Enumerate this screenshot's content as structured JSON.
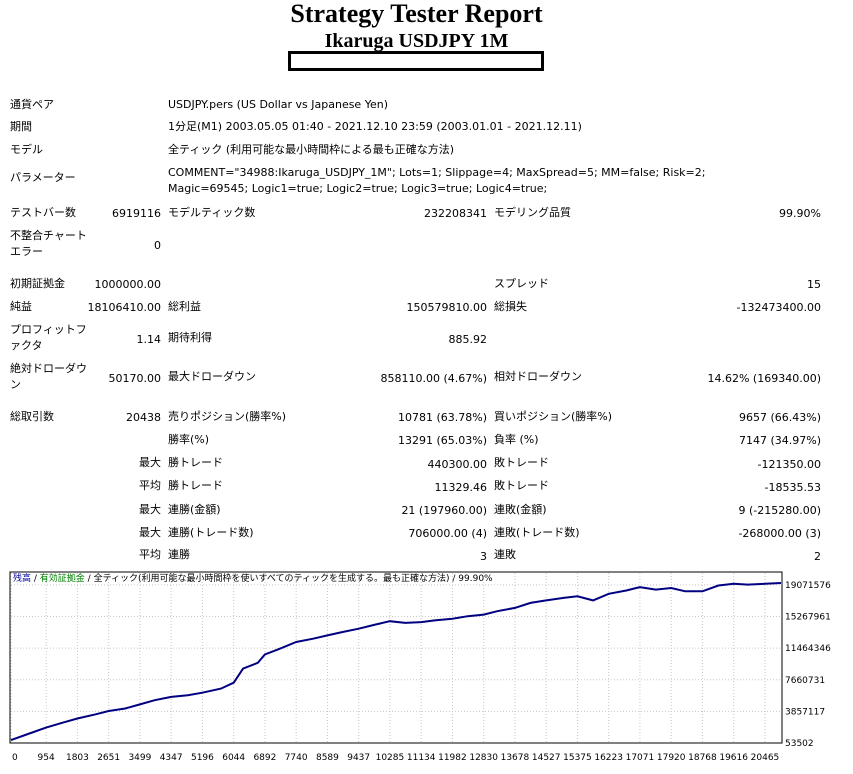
{
  "header": {
    "title": "Strategy Tester Report",
    "subtitle": "Ikaruga  USDJPY  1M"
  },
  "info": [
    {
      "label": "通貨ペア",
      "value": "USDJPY.pers (US Dollar vs Japanese Yen)"
    },
    {
      "label": "期間",
      "value": "1分足(M1) 2003.05.05 01:40 - 2021.12.10 23:59 (2003.01.01 - 2021.12.11)"
    },
    {
      "label": "モデル",
      "value": "全ティック (利用可能な最小時間枠による最も正確な方法)"
    },
    {
      "label": "パラメーター",
      "value": "COMMENT=\"34988:Ikaruga_USDJPY_1M\"; Lots=1; Slippage=4; MaxSpread=5; MM=false; Risk=2; Magic=69545; Logic1=true; Logic2=true; Logic3=true; Logic4=true;"
    }
  ],
  "stats": {
    "test_bars_label": "テストバー数",
    "test_bars": "6919116",
    "model_ticks_label": "モデルティック数",
    "model_ticks": "232208341",
    "model_quality_label": "モデリング品質",
    "model_quality": "99.90%",
    "mismatch_label": "不整合チャートエラー",
    "mismatch": "0",
    "initial_deposit_label": "初期証拠金",
    "initial_deposit": "1000000.00",
    "spread_label": "スプレッド",
    "spread": "15",
    "net_profit_label": "純益",
    "net_profit": "18106410.00",
    "gross_profit_label": "総利益",
    "gross_profit": "150579810.00",
    "gross_loss_label": "総損失",
    "gross_loss": "-132473400.00",
    "profit_factor_label": "プロフィットファクタ",
    "profit_factor": "1.14",
    "expected_payoff_label": "期待利得",
    "expected_payoff": "885.92",
    "abs_dd_label": "絶対ドローダウン",
    "abs_dd": "50170.00",
    "max_dd_label": "最大ドローダウン",
    "max_dd": "858110.00 (4.67%)",
    "rel_dd_label": "相対ドローダウン",
    "rel_dd": "14.62% (169340.00)",
    "total_trades_label": "総取引数",
    "total_trades": "20438",
    "short_label": "売りポジション(勝率%)",
    "short": "10781 (63.78%)",
    "long_label": "買いポジション(勝率%)",
    "long": "9657 (66.43%)",
    "win_rate_label": "勝率(%)",
    "win_rate": "13291 (65.03%)",
    "loss_rate_label": "負率 (%)",
    "loss_rate": "7147 (34.97%)",
    "max_label": "最大",
    "avg_label": "平均",
    "win_trade_label": "勝トレード",
    "lose_trade_label": "敗トレード",
    "largest_win": "440300.00",
    "largest_loss": "-121350.00",
    "avg_win": "11329.46",
    "avg_loss": "-18535.53",
    "consec_win_money_label": "連勝(金額)",
    "consec_win_money": "21 (197960.00)",
    "consec_loss_money_label": "連敗(金額)",
    "consec_loss_money": "9 (-215280.00)",
    "consec_win_count_label": "連勝(トレード数)",
    "consec_win_count": "706000.00 (4)",
    "consec_loss_count_label": "連敗(トレード数)",
    "consec_loss_count": "-268000.00 (3)",
    "consec_win_label": "連勝",
    "avg_consec_win": "3",
    "consec_loss_label": "連敗",
    "avg_consec_loss": "2"
  },
  "chart_data": {
    "type": "line",
    "legend": {
      "balance": "残高",
      "sep1": " / ",
      "equity": "有効証拠金",
      "sep2": " / ",
      "model": "全ティック(利用可能な最小時間枠を使いすべてのティックを生成する。最も正確な方法)",
      "sep3": " / ",
      "quality": "99.90%"
    },
    "ylim": [
      53502,
      20500000
    ],
    "y_ticks": [
      53502,
      3857117,
      7660731,
      11464346,
      15267961,
      19071576
    ],
    "x_ticks": [
      0,
      954,
      1803,
      2651,
      3499,
      4347,
      5196,
      6044,
      6892,
      7740,
      8589,
      9437,
      10285,
      11134,
      11982,
      12830,
      13678,
      14527,
      15375,
      16223,
      17071,
      17920,
      18768,
      19616,
      20465
    ],
    "xlim": [
      0,
      20900
    ],
    "line_color": "#000080",
    "series": [
      {
        "x": [
          0,
          500,
          954,
          1400,
          1803,
          2300,
          2651,
          3100,
          3499,
          3900,
          4347,
          4800,
          5196,
          5700,
          6044,
          6300,
          6700,
          6892,
          7300,
          7740,
          8200,
          8589,
          9000,
          9437,
          9900,
          10285,
          10700,
          11134,
          11500,
          11982,
          12400,
          12830,
          13200,
          13678,
          14100,
          14527,
          15000,
          15375,
          15800,
          16223,
          16700,
          17071,
          17500,
          17920,
          18300,
          18768,
          19200,
          19616,
          20000,
          20465,
          20900
        ],
        "y": [
          400000,
          1200000,
          1900000,
          2500000,
          3000000,
          3500000,
          3900000,
          4200000,
          4700000,
          5200000,
          5600000,
          5800000,
          6100000,
          6600000,
          7300000,
          9000000,
          9700000,
          10700000,
          11400000,
          12200000,
          12600000,
          13000000,
          13400000,
          13800000,
          14300000,
          14700000,
          14500000,
          14600000,
          14800000,
          15000000,
          15300000,
          15500000,
          15900000,
          16300000,
          16900000,
          17200000,
          17500000,
          17700000,
          17200000,
          18000000,
          18400000,
          18800000,
          18500000,
          18700000,
          18300000,
          18300000,
          19000000,
          19200000,
          19100000,
          19200000,
          19300000
        ]
      }
    ]
  }
}
